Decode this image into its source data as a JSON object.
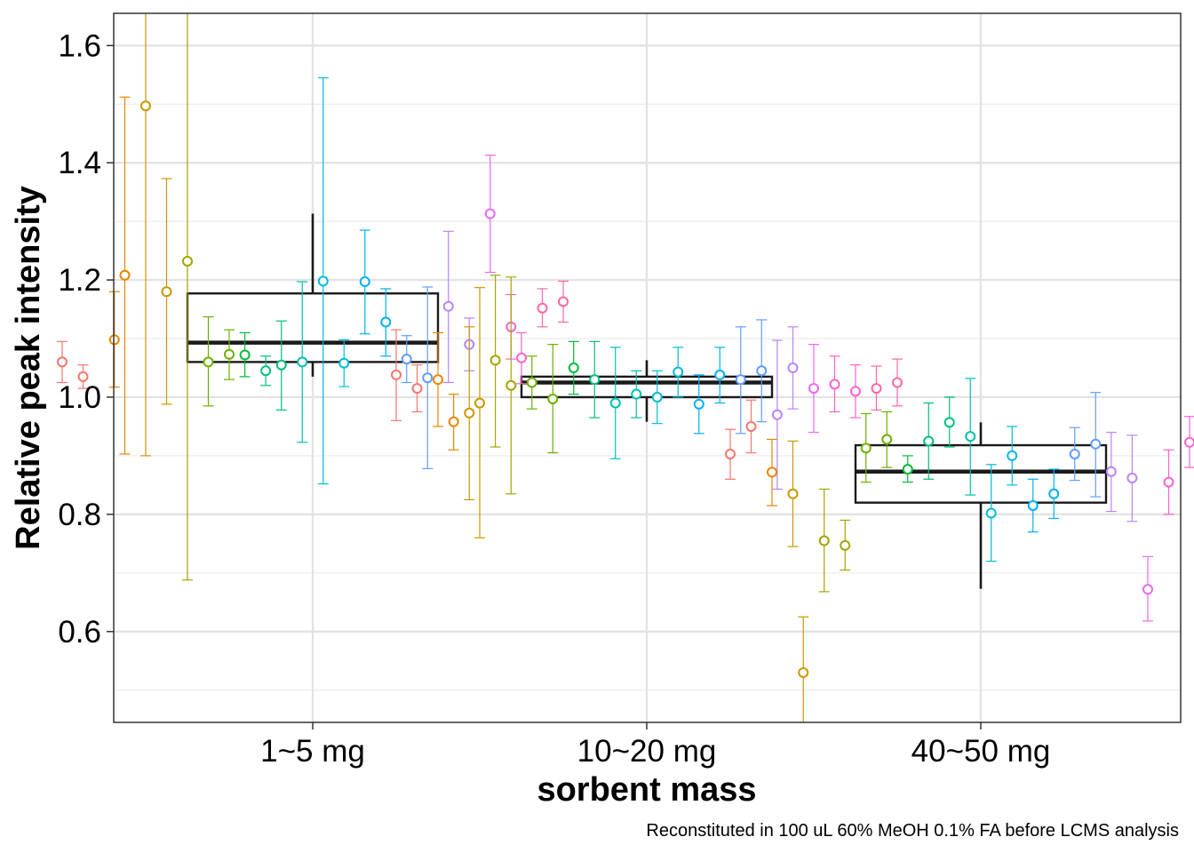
{
  "chart_data": {
    "type": "boxplot",
    "title": "",
    "xlabel": "sorbent mass",
    "ylabel": "Relative peak intensity",
    "caption": "Reconstituted in 100 uL 60% MeOH 0.1% FA before LCMS analysis",
    "categories": [
      "1~5 mg",
      "10~20 mg",
      "40~50 mg"
    ],
    "ylim": [
      0.445,
      1.655
    ],
    "yticks": [
      0.6,
      0.8,
      1.0,
      1.2,
      1.4,
      1.6
    ],
    "ytick_labels": [
      "0.6",
      "0.8",
      "1.0",
      "1.2",
      "1.4",
      "1.6"
    ],
    "grid": true,
    "legend": "none",
    "boxes": [
      {
        "category": "1~5 mg",
        "lower_whisker": 1.035,
        "q1": 1.06,
        "median": 1.093,
        "q3": 1.177,
        "upper_whisker": 1.313
      },
      {
        "category": "10~20 mg",
        "lower_whisker": 0.958,
        "q1": 1.0,
        "median": 1.025,
        "q3": 1.035,
        "upper_whisker": 1.063
      },
      {
        "category": "40~50 mg",
        "lower_whisker": 0.673,
        "q1": 0.82,
        "median": 0.873,
        "q3": 0.918,
        "upper_whisker": 0.957
      }
    ],
    "palette": [
      "#F8766D",
      "#E58700",
      "#C99800",
      "#A3A500",
      "#6BB100",
      "#00BA38",
      "#00BF7D",
      "#00C0AF",
      "#00BCD8",
      "#00B0F6",
      "#619CFF",
      "#B983FF",
      "#E76BF3",
      "#FD61D1",
      "#FF67A4"
    ],
    "points": [
      {
        "category": "1~5 mg",
        "offset": -0.24,
        "color_index": 0,
        "y": 1.06,
        "lo": 1.025,
        "hi": 1.095
      },
      {
        "category": "1~5 mg",
        "offset": -0.22,
        "color_index": 0,
        "y": 1.035,
        "lo": 1.015,
        "hi": 1.055
      },
      {
        "category": "1~5 mg",
        "offset": -0.19,
        "color_index": 1,
        "y": 1.098,
        "lo": 1.017,
        "hi": 1.18
      },
      {
        "category": "1~5 mg",
        "offset": -0.18,
        "color_index": 1,
        "y": 1.208,
        "lo": 0.903,
        "hi": 1.512
      },
      {
        "category": "1~5 mg",
        "offset": -0.16,
        "color_index": 2,
        "y": 1.497,
        "lo": 0.9,
        "hi": 1.655
      },
      {
        "category": "1~5 mg",
        "offset": -0.14,
        "color_index": 2,
        "y": 1.18,
        "lo": 0.988,
        "hi": 1.373
      },
      {
        "category": "1~5 mg",
        "offset": -0.12,
        "color_index": 3,
        "y": 1.232,
        "lo": 0.688,
        "hi": 1.655
      },
      {
        "category": "1~5 mg",
        "offset": -0.1,
        "color_index": 4,
        "y": 1.06,
        "lo": 0.985,
        "hi": 1.137
      },
      {
        "category": "1~5 mg",
        "offset": -0.08,
        "color_index": 4,
        "y": 1.073,
        "lo": 1.03,
        "hi": 1.115
      },
      {
        "category": "1~5 mg",
        "offset": -0.065,
        "color_index": 5,
        "y": 1.072,
        "lo": 1.035,
        "hi": 1.11
      },
      {
        "category": "1~5 mg",
        "offset": -0.045,
        "color_index": 6,
        "y": 1.045,
        "lo": 1.02,
        "hi": 1.07
      },
      {
        "category": "1~5 mg",
        "offset": -0.03,
        "color_index": 6,
        "y": 1.055,
        "lo": 0.978,
        "hi": 1.13
      },
      {
        "category": "1~5 mg",
        "offset": -0.01,
        "color_index": 7,
        "y": 1.06,
        "lo": 0.923,
        "hi": 1.197
      },
      {
        "category": "1~5 mg",
        "offset": 0.01,
        "color_index": 8,
        "y": 1.198,
        "lo": 0.852,
        "hi": 1.545
      },
      {
        "category": "1~5 mg",
        "offset": 0.03,
        "color_index": 8,
        "y": 1.058,
        "lo": 1.018,
        "hi": 1.098
      },
      {
        "category": "1~5 mg",
        "offset": 0.05,
        "color_index": 9,
        "y": 1.197,
        "lo": 1.108,
        "hi": 1.285
      },
      {
        "category": "1~5 mg",
        "offset": 0.07,
        "color_index": 9,
        "y": 1.128,
        "lo": 1.07,
        "hi": 1.185
      },
      {
        "category": "1~5 mg",
        "offset": 0.09,
        "color_index": 10,
        "y": 1.065,
        "lo": 1.025,
        "hi": 1.105
      },
      {
        "category": "1~5 mg",
        "offset": 0.11,
        "color_index": 10,
        "y": 1.033,
        "lo": 0.878,
        "hi": 1.188
      },
      {
        "category": "1~5 mg",
        "offset": 0.13,
        "color_index": 11,
        "y": 1.155,
        "lo": 1.025,
        "hi": 1.283
      },
      {
        "category": "1~5 mg",
        "offset": 0.15,
        "color_index": 11,
        "y": 1.09,
        "lo": 1.045,
        "hi": 1.135
      },
      {
        "category": "1~5 mg",
        "offset": 0.17,
        "color_index": 12,
        "y": 1.313,
        "lo": 1.213,
        "hi": 1.413
      },
      {
        "category": "1~5 mg",
        "offset": 0.19,
        "color_index": 13,
        "y": 1.12,
        "lo": 1.065,
        "hi": 1.175
      },
      {
        "category": "1~5 mg",
        "offset": 0.2,
        "color_index": 13,
        "y": 1.067,
        "lo": 1.023,
        "hi": 1.11
      },
      {
        "category": "1~5 mg",
        "offset": 0.22,
        "color_index": 14,
        "y": 1.152,
        "lo": 1.12,
        "hi": 1.185
      },
      {
        "category": "1~5 mg",
        "offset": 0.24,
        "color_index": 14,
        "y": 1.163,
        "lo": 1.128,
        "hi": 1.198
      },
      {
        "category": "10~20 mg",
        "offset": -0.24,
        "color_index": 0,
        "y": 1.038,
        "lo": 0.96,
        "hi": 1.115
      },
      {
        "category": "10~20 mg",
        "offset": -0.22,
        "color_index": 0,
        "y": 1.015,
        "lo": 0.975,
        "hi": 1.055
      },
      {
        "category": "10~20 mg",
        "offset": -0.2,
        "color_index": 1,
        "y": 1.03,
        "lo": 0.95,
        "hi": 1.11
      },
      {
        "category": "10~20 mg",
        "offset": -0.185,
        "color_index": 1,
        "y": 0.958,
        "lo": 0.91,
        "hi": 1.005
      },
      {
        "category": "10~20 mg",
        "offset": -0.17,
        "color_index": 2,
        "y": 0.973,
        "lo": 0.825,
        "hi": 1.12
      },
      {
        "category": "10~20 mg",
        "offset": -0.16,
        "color_index": 2,
        "y": 0.99,
        "lo": 0.76,
        "hi": 1.187
      },
      {
        "category": "10~20 mg",
        "offset": -0.145,
        "color_index": 3,
        "y": 1.063,
        "lo": 0.915,
        "hi": 1.208
      },
      {
        "category": "10~20 mg",
        "offset": -0.13,
        "color_index": 3,
        "y": 1.02,
        "lo": 0.835,
        "hi": 1.205
      },
      {
        "category": "10~20 mg",
        "offset": -0.11,
        "color_index": 4,
        "y": 1.025,
        "lo": 0.98,
        "hi": 1.07
      },
      {
        "category": "10~20 mg",
        "offset": -0.09,
        "color_index": 4,
        "y": 0.997,
        "lo": 0.905,
        "hi": 1.09
      },
      {
        "category": "10~20 mg",
        "offset": -0.07,
        "color_index": 5,
        "y": 1.05,
        "lo": 1.005,
        "hi": 1.095
      },
      {
        "category": "10~20 mg",
        "offset": -0.05,
        "color_index": 6,
        "y": 1.03,
        "lo": 0.965,
        "hi": 1.095
      },
      {
        "category": "10~20 mg",
        "offset": -0.03,
        "color_index": 7,
        "y": 0.99,
        "lo": 0.895,
        "hi": 1.085
      },
      {
        "category": "10~20 mg",
        "offset": -0.01,
        "color_index": 7,
        "y": 1.005,
        "lo": 0.965,
        "hi": 1.045
      },
      {
        "category": "10~20 mg",
        "offset": 0.01,
        "color_index": 8,
        "y": 1.0,
        "lo": 0.955,
        "hi": 1.045
      },
      {
        "category": "10~20 mg",
        "offset": 0.03,
        "color_index": 8,
        "y": 1.043,
        "lo": 1.0,
        "hi": 1.085
      },
      {
        "category": "10~20 mg",
        "offset": 0.05,
        "color_index": 9,
        "y": 0.988,
        "lo": 0.938,
        "hi": 1.038
      },
      {
        "category": "10~20 mg",
        "offset": 0.07,
        "color_index": 9,
        "y": 1.038,
        "lo": 0.99,
        "hi": 1.085
      },
      {
        "category": "10~20 mg",
        "offset": 0.09,
        "color_index": 10,
        "y": 1.03,
        "lo": 0.938,
        "hi": 1.12
      },
      {
        "category": "10~20 mg",
        "offset": 0.11,
        "color_index": 10,
        "y": 1.045,
        "lo": 0.958,
        "hi": 1.132
      },
      {
        "category": "10~20 mg",
        "offset": 0.125,
        "color_index": 11,
        "y": 0.97,
        "lo": 0.843,
        "hi": 1.097
      },
      {
        "category": "10~20 mg",
        "offset": 0.14,
        "color_index": 11,
        "y": 1.05,
        "lo": 0.98,
        "hi": 1.12
      },
      {
        "category": "10~20 mg",
        "offset": 0.16,
        "color_index": 12,
        "y": 1.015,
        "lo": 0.94,
        "hi": 1.09
      },
      {
        "category": "10~20 mg",
        "offset": 0.18,
        "color_index": 13,
        "y": 1.022,
        "lo": 0.975,
        "hi": 1.07
      },
      {
        "category": "10~20 mg",
        "offset": 0.2,
        "color_index": 13,
        "y": 1.01,
        "lo": 0.965,
        "hi": 1.055
      },
      {
        "category": "10~20 mg",
        "offset": 0.22,
        "color_index": 14,
        "y": 1.015,
        "lo": 0.978,
        "hi": 1.053
      },
      {
        "category": "10~20 mg",
        "offset": 0.24,
        "color_index": 14,
        "y": 1.025,
        "lo": 0.985,
        "hi": 1.065
      },
      {
        "category": "40~50 mg",
        "offset": -0.24,
        "color_index": 0,
        "y": 0.903,
        "lo": 0.86,
        "hi": 0.945
      },
      {
        "category": "40~50 mg",
        "offset": -0.22,
        "color_index": 0,
        "y": 0.95,
        "lo": 0.905,
        "hi": 0.995
      },
      {
        "category": "40~50 mg",
        "offset": -0.2,
        "color_index": 1,
        "y": 0.872,
        "lo": 0.815,
        "hi": 0.928
      },
      {
        "category": "40~50 mg",
        "offset": -0.18,
        "color_index": 2,
        "y": 0.835,
        "lo": 0.745,
        "hi": 0.925
      },
      {
        "category": "40~50 mg",
        "offset": -0.17,
        "color_index": 2,
        "y": 0.53,
        "lo": 0.445,
        "hi": 0.625
      },
      {
        "category": "40~50 mg",
        "offset": -0.15,
        "color_index": 3,
        "y": 0.755,
        "lo": 0.668,
        "hi": 0.843
      },
      {
        "category": "40~50 mg",
        "offset": -0.13,
        "color_index": 3,
        "y": 0.747,
        "lo": 0.705,
        "hi": 0.79
      },
      {
        "category": "40~50 mg",
        "offset": -0.11,
        "color_index": 4,
        "y": 0.913,
        "lo": 0.855,
        "hi": 0.972
      },
      {
        "category": "40~50 mg",
        "offset": -0.09,
        "color_index": 4,
        "y": 0.928,
        "lo": 0.88,
        "hi": 0.975
      },
      {
        "category": "40~50 mg",
        "offset": -0.07,
        "color_index": 5,
        "y": 0.877,
        "lo": 0.855,
        "hi": 0.9
      },
      {
        "category": "40~50 mg",
        "offset": -0.05,
        "color_index": 6,
        "y": 0.925,
        "lo": 0.86,
        "hi": 0.99
      },
      {
        "category": "40~50 mg",
        "offset": -0.03,
        "color_index": 6,
        "y": 0.957,
        "lo": 0.915,
        "hi": 1.0
      },
      {
        "category": "40~50 mg",
        "offset": -0.01,
        "color_index": 7,
        "y": 0.933,
        "lo": 0.833,
        "hi": 1.032
      },
      {
        "category": "40~50 mg",
        "offset": 0.01,
        "color_index": 8,
        "y": 0.802,
        "lo": 0.72,
        "hi": 0.885
      },
      {
        "category": "40~50 mg",
        "offset": 0.03,
        "color_index": 8,
        "y": 0.9,
        "lo": 0.85,
        "hi": 0.95
      },
      {
        "category": "40~50 mg",
        "offset": 0.05,
        "color_index": 9,
        "y": 0.815,
        "lo": 0.77,
        "hi": 0.86
      },
      {
        "category": "40~50 mg",
        "offset": 0.07,
        "color_index": 9,
        "y": 0.835,
        "lo": 0.793,
        "hi": 0.877
      },
      {
        "category": "40~50 mg",
        "offset": 0.09,
        "color_index": 10,
        "y": 0.903,
        "lo": 0.858,
        "hi": 0.948
      },
      {
        "category": "40~50 mg",
        "offset": 0.11,
        "color_index": 10,
        "y": 0.92,
        "lo": 0.83,
        "hi": 1.008
      },
      {
        "category": "40~50 mg",
        "offset": 0.125,
        "color_index": 11,
        "y": 0.873,
        "lo": 0.805,
        "hi": 0.94
      },
      {
        "category": "40~50 mg",
        "offset": 0.145,
        "color_index": 11,
        "y": 0.862,
        "lo": 0.788,
        "hi": 0.935
      },
      {
        "category": "40~50 mg",
        "offset": 0.16,
        "color_index": 12,
        "y": 0.672,
        "lo": 0.618,
        "hi": 0.728
      },
      {
        "category": "40~50 mg",
        "offset": 0.18,
        "color_index": 13,
        "y": 0.855,
        "lo": 0.8,
        "hi": 0.91
      },
      {
        "category": "40~50 mg",
        "offset": 0.2,
        "color_index": 13,
        "y": 0.923,
        "lo": 0.88,
        "hi": 0.967
      },
      {
        "category": "40~50 mg",
        "offset": 0.22,
        "color_index": 14,
        "y": 0.832,
        "lo": 0.795,
        "hi": 0.87
      },
      {
        "category": "40~50 mg",
        "offset": 0.24,
        "color_index": 14,
        "y": 0.81,
        "lo": 0.773,
        "hi": 0.848
      }
    ]
  }
}
